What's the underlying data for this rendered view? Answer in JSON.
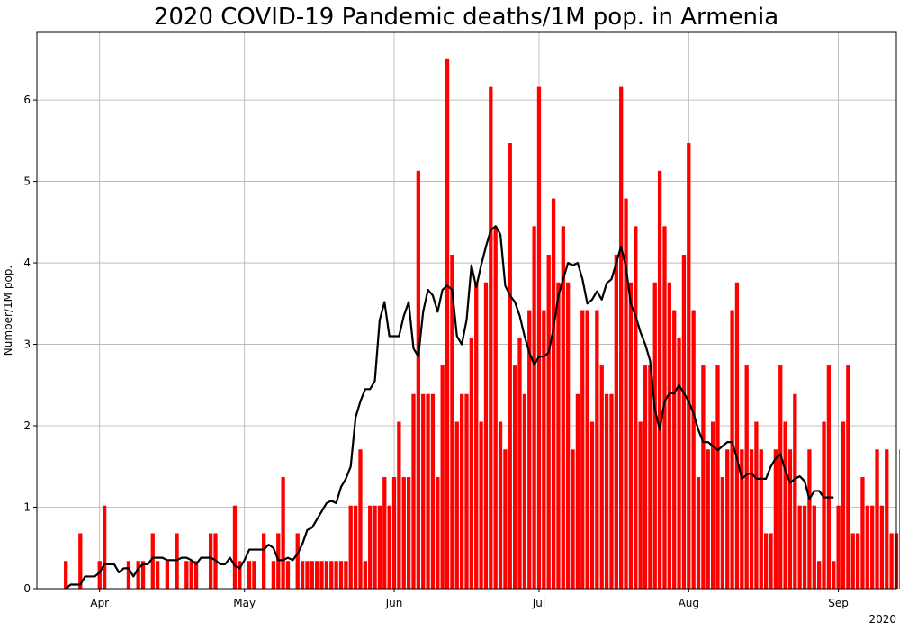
{
  "chart_data": {
    "type": "bar",
    "title": "2020 COVID-19 Pandemic deaths/1M pop. in Armenia",
    "xlabel": "",
    "ylabel": "Number/1M pop.",
    "year_label": "2020",
    "grid": true,
    "start_date": "2020-03-25",
    "x_tick_labels": [
      {
        "date": "2020-04-01",
        "label": "Apr"
      },
      {
        "date": "2020-05-01",
        "label": "May"
      },
      {
        "date": "2020-06-01",
        "label": "Jun"
      },
      {
        "date": "2020-07-01",
        "label": "Jul"
      },
      {
        "date": "2020-08-01",
        "label": "Aug"
      },
      {
        "date": "2020-09-01",
        "label": "Sep"
      }
    ],
    "y_ticks": [
      0,
      1,
      2,
      3,
      4,
      5,
      6
    ],
    "ylim": [
      0,
      6.83
    ],
    "xlim": [
      "2020-03-19",
      "2020-09-13"
    ],
    "bar_color": "#ff0000",
    "line_color": "#000000",
    "series": [
      {
        "name": "Daily deaths per 1M",
        "kind": "bar",
        "values": [
          0.34,
          0,
          0,
          0.68,
          0,
          0,
          0,
          0.34,
          1.02,
          0,
          0,
          0,
          0,
          0.34,
          0,
          0.34,
          0.34,
          0,
          0.68,
          0.34,
          0,
          0.34,
          0,
          0.68,
          0,
          0.34,
          0.34,
          0.34,
          0,
          0,
          0.68,
          0.68,
          0,
          0,
          0,
          1.02,
          0.34,
          0,
          0.34,
          0.34,
          0,
          0.68,
          0,
          0.34,
          0.68,
          1.37,
          0.34,
          0,
          0.68,
          0.34,
          0.34,
          0.34,
          0.34,
          0.34,
          0.34,
          0.34,
          0.34,
          0.34,
          0.34,
          1.02,
          1.02,
          1.71,
          0.34,
          1.02,
          1.02,
          1.02,
          1.37,
          1.02,
          1.37,
          2.05,
          1.37,
          1.37,
          2.39,
          5.13,
          2.39,
          2.39,
          2.39,
          1.37,
          2.74,
          6.5,
          4.1,
          2.05,
          2.39,
          2.39,
          3.08,
          3.76,
          2.05,
          3.76,
          6.16,
          4.45,
          2.05,
          1.71,
          5.47,
          2.74,
          3.08,
          2.39,
          3.42,
          4.45,
          6.16,
          3.42,
          4.1,
          4.79,
          3.76,
          4.45,
          3.76,
          1.71,
          2.39,
          3.42,
          3.42,
          2.05,
          3.42,
          2.74,
          2.39,
          2.39,
          4.1,
          6.16,
          4.79,
          3.76,
          4.45,
          2.05,
          2.74,
          2.74,
          3.76,
          5.13,
          4.45,
          3.76,
          3.42,
          3.08,
          4.1,
          5.47,
          3.42,
          1.37,
          2.74,
          1.71,
          2.05,
          2.74,
          1.37,
          1.71,
          3.42,
          3.76,
          1.71,
          2.74,
          1.71,
          2.05,
          1.71,
          0.68,
          0.68,
          1.71,
          2.74,
          2.05,
          1.71,
          2.39,
          1.02,
          1.02,
          1.71,
          1.02,
          0.34,
          2.05,
          2.74,
          0.34,
          1.02,
          2.05,
          2.74,
          0.68,
          0.68,
          1.37,
          1.02,
          1.02,
          1.71,
          1.02,
          1.71,
          0.68,
          0.68,
          1.71,
          1.02,
          1.02,
          1.37
        ]
      },
      {
        "name": "7-day average",
        "kind": "line",
        "values": [
          0.0,
          0.05,
          0.05,
          0.05,
          0.15,
          0.15,
          0.15,
          0.2,
          0.3,
          0.3,
          0.3,
          0.2,
          0.25,
          0.25,
          0.15,
          0.25,
          0.3,
          0.3,
          0.38,
          0.38,
          0.38,
          0.35,
          0.35,
          0.35,
          0.38,
          0.38,
          0.35,
          0.3,
          0.38,
          0.38,
          0.38,
          0.35,
          0.3,
          0.3,
          0.38,
          0.28,
          0.25,
          0.35,
          0.48,
          0.48,
          0.48,
          0.48,
          0.54,
          0.5,
          0.35,
          0.35,
          0.38,
          0.35,
          0.43,
          0.55,
          0.72,
          0.75,
          0.85,
          0.95,
          1.05,
          1.08,
          1.05,
          1.25,
          1.35,
          1.5,
          2.1,
          2.3,
          2.45,
          2.45,
          2.55,
          3.3,
          3.52,
          3.1,
          3.1,
          3.1,
          3.35,
          3.52,
          2.95,
          2.85,
          3.4,
          3.67,
          3.6,
          3.4,
          3.67,
          3.72,
          3.67,
          3.1,
          3.0,
          3.3,
          3.97,
          3.7,
          3.97,
          4.2,
          4.4,
          4.45,
          4.35,
          3.72,
          3.6,
          3.52,
          3.35,
          3.1,
          2.9,
          2.75,
          2.85,
          2.85,
          2.9,
          3.2,
          3.6,
          3.8,
          4.0,
          3.97,
          4.0,
          3.8,
          3.5,
          3.55,
          3.65,
          3.55,
          3.75,
          3.8,
          4.0,
          4.2,
          3.95,
          3.5,
          3.35,
          3.15,
          3.0,
          2.8,
          2.2,
          1.95,
          2.3,
          2.4,
          2.4,
          2.5,
          2.4,
          2.3,
          2.15,
          1.95,
          1.8,
          1.8,
          1.75,
          1.7,
          1.75,
          1.8,
          1.8,
          1.6,
          1.35,
          1.4,
          1.42,
          1.35,
          1.35,
          1.35,
          1.5,
          1.6,
          1.65,
          1.45,
          1.3,
          1.35,
          1.38,
          1.32,
          1.1,
          1.2,
          1.2,
          1.12,
          1.12,
          1.12
        ]
      }
    ]
  }
}
